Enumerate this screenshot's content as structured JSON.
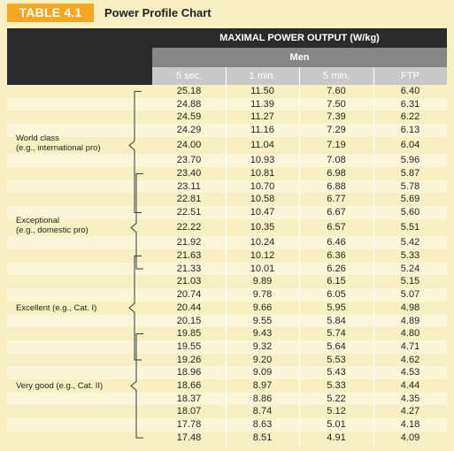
{
  "header": {
    "table_label": "TABLE 4.1",
    "title": "Power Profile Chart"
  },
  "table": {
    "group_header": "MAXIMAL POWER OUTPUT (W/kg)",
    "subgroup_header": "Men",
    "columns": [
      "5 sec.",
      "1 min.",
      "5 min.",
      "FTP"
    ],
    "rows": [
      [
        "25.18",
        "11.50",
        "7.60",
        "6.40"
      ],
      [
        "24.88",
        "11.39",
        "7.50",
        "6.31"
      ],
      [
        "24.59",
        "11.27",
        "7.39",
        "6.22"
      ],
      [
        "24.29",
        "11.16",
        "7.29",
        "6.13"
      ],
      [
        "24.00",
        "11.04",
        "7.19",
        "6.04"
      ],
      [
        "23.70",
        "10.93",
        "7.08",
        "5.96"
      ],
      [
        "23.40",
        "10.81",
        "6.98",
        "5.87"
      ],
      [
        "23.11",
        "10.70",
        "6.88",
        "5.78"
      ],
      [
        "22.81",
        "10.58",
        "6.77",
        "5.69"
      ],
      [
        "22.51",
        "10.47",
        "6.67",
        "5.60"
      ],
      [
        "22.22",
        "10.35",
        "6.57",
        "5.51"
      ],
      [
        "21.92",
        "10.24",
        "6.46",
        "5.42"
      ],
      [
        "21.63",
        "10.12",
        "6.36",
        "5.33"
      ],
      [
        "21.33",
        "10.01",
        "6.26",
        "5.24"
      ],
      [
        "21.03",
        "9.89",
        "6.15",
        "5.15"
      ],
      [
        "20.74",
        "9.78",
        "6.05",
        "5.07"
      ],
      [
        "20.44",
        "9.66",
        "5.95",
        "4.98"
      ],
      [
        "20.15",
        "9.55",
        "5.84",
        "4.89"
      ],
      [
        "19.85",
        "9.43",
        "5.74",
        "4.80"
      ],
      [
        "19.55",
        "9.32",
        "5.64",
        "4.71"
      ],
      [
        "19.26",
        "9.20",
        "5.53",
        "4.62"
      ],
      [
        "18.96",
        "9.09",
        "5.43",
        "4.53"
      ],
      [
        "18.66",
        "8.97",
        "5.33",
        "4.44"
      ],
      [
        "18.37",
        "8.86",
        "5.22",
        "4.35"
      ],
      [
        "18.07",
        "8.74",
        "5.12",
        "4.27"
      ],
      [
        "17.78",
        "8.63",
        "5.01",
        "4.18"
      ],
      [
        "17.48",
        "8.51",
        "4.91",
        "4.09"
      ]
    ],
    "categories": [
      {
        "line1": "World class",
        "line2": "(e.g., international pro)"
      },
      {
        "line1": "Exceptional",
        "line2": "(e.g., domestic pro)"
      },
      {
        "line1": "Excellent (e.g., Cat. I)",
        "line2": ""
      },
      {
        "line1": "Very good (e.g., Cat. II)",
        "line2": ""
      }
    ]
  },
  "colors": {
    "tag": "#f5a623",
    "dark": "#2b2b2b",
    "mid_gray": "#868686",
    "light_gray": "#c8c8c8",
    "background": "#f7f0c2"
  }
}
